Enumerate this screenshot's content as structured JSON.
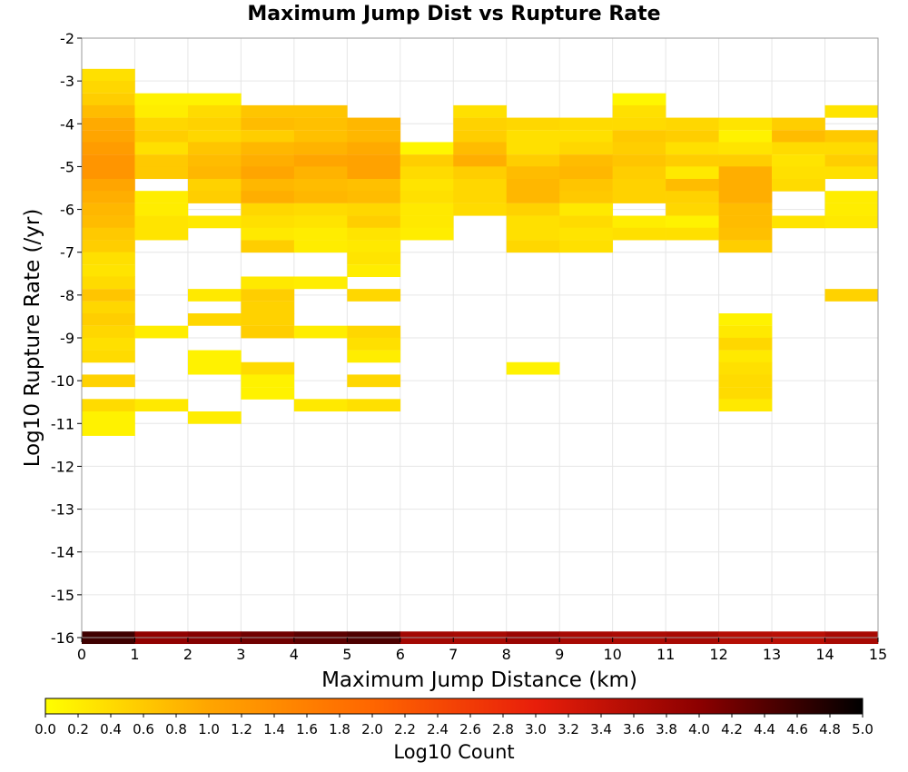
{
  "chart_data": {
    "type": "heatmap",
    "title": "Maximum Jump Dist vs Rupture Rate",
    "xlabel": "Maximum Jump Distance (km)",
    "ylabel": "Log10 Rupture Rate (/yr)",
    "xlim": [
      0,
      15
    ],
    "ylim": [
      -16,
      -2
    ],
    "x_ticks": [
      "0",
      "1",
      "2",
      "3",
      "4",
      "5",
      "6",
      "7",
      "8",
      "9",
      "10",
      "11",
      "12",
      "13",
      "14",
      "15"
    ],
    "y_ticks": [
      "-2",
      "-3",
      "-4",
      "-5",
      "-6",
      "-7",
      "-8",
      "-9",
      "-10",
      "-11",
      "-12",
      "-13",
      "-14",
      "-15",
      "-16"
    ],
    "grid": true,
    "x_bin_width": 1,
    "y_bin_height": 0.285,
    "colorbar": {
      "label": "Log10 Count",
      "min": 0.0,
      "max": 5.0,
      "ticks": [
        "0.0",
        "0.2",
        "0.4",
        "0.6",
        "0.8",
        "1.0",
        "1.2",
        "1.4",
        "1.6",
        "1.8",
        "2.0",
        "2.2",
        "2.4",
        "2.6",
        "2.8",
        "3.0",
        "3.2",
        "3.4",
        "3.6",
        "3.8",
        "4.0",
        "4.2",
        "4.4",
        "4.6",
        "4.8",
        "5.0"
      ],
      "colors": [
        "#ffff00",
        "#ffa500",
        "#ff6600",
        "#e81e0a",
        "#8c0000",
        "#000000"
      ]
    },
    "bins": [
      {
        "x": 0,
        "y": -2.86,
        "v": 0.35
      },
      {
        "x": 0,
        "y": -3.14,
        "v": 0.45
      },
      {
        "x": 0,
        "y": -3.43,
        "v": 0.55
      },
      {
        "x": 0,
        "y": -3.71,
        "v": 0.75
      },
      {
        "x": 0,
        "y": -4.0,
        "v": 0.95
      },
      {
        "x": 0,
        "y": -4.29,
        "v": 1.0
      },
      {
        "x": 0,
        "y": -4.57,
        "v": 1.15
      },
      {
        "x": 0,
        "y": -4.86,
        "v": 1.25
      },
      {
        "x": 0,
        "y": -5.14,
        "v": 1.25
      },
      {
        "x": 0,
        "y": -5.43,
        "v": 1.0
      },
      {
        "x": 0,
        "y": -5.71,
        "v": 0.9
      },
      {
        "x": 0,
        "y": -6.0,
        "v": 0.8
      },
      {
        "x": 0,
        "y": -6.29,
        "v": 0.75
      },
      {
        "x": 0,
        "y": -6.57,
        "v": 0.6
      },
      {
        "x": 0,
        "y": -6.86,
        "v": 0.55
      },
      {
        "x": 0,
        "y": -7.14,
        "v": 0.35
      },
      {
        "x": 0,
        "y": -7.43,
        "v": 0.3
      },
      {
        "x": 0,
        "y": -7.71,
        "v": 0.4
      },
      {
        "x": 0,
        "y": -8.0,
        "v": 0.65
      },
      {
        "x": 0,
        "y": -8.29,
        "v": 0.45
      },
      {
        "x": 0,
        "y": -8.57,
        "v": 0.55
      },
      {
        "x": 0,
        "y": -8.86,
        "v": 0.45
      },
      {
        "x": 0,
        "y": -9.14,
        "v": 0.35
      },
      {
        "x": 0,
        "y": -9.43,
        "v": 0.4
      },
      {
        "x": 0,
        "y": -10.0,
        "v": 0.5
      },
      {
        "x": 0,
        "y": -10.57,
        "v": 0.4
      },
      {
        "x": 0,
        "y": -10.86,
        "v": 0.15
      },
      {
        "x": 0,
        "y": -11.14,
        "v": 0.15
      },
      {
        "x": 1,
        "y": -3.43,
        "v": 0.15
      },
      {
        "x": 1,
        "y": -3.71,
        "v": 0.2
      },
      {
        "x": 1,
        "y": -4.0,
        "v": 0.45
      },
      {
        "x": 1,
        "y": -4.29,
        "v": 0.55
      },
      {
        "x": 1,
        "y": -4.57,
        "v": 0.35
      },
      {
        "x": 1,
        "y": -4.86,
        "v": 0.6
      },
      {
        "x": 1,
        "y": -5.14,
        "v": 0.6
      },
      {
        "x": 1,
        "y": -5.71,
        "v": 0.2
      },
      {
        "x": 1,
        "y": -6.0,
        "v": 0.2
      },
      {
        "x": 1,
        "y": -6.29,
        "v": 0.3
      },
      {
        "x": 1,
        "y": -6.57,
        "v": 0.3
      },
      {
        "x": 1,
        "y": -8.86,
        "v": 0.2
      },
      {
        "x": 1,
        "y": -10.57,
        "v": 0.25
      },
      {
        "x": 2,
        "y": -3.43,
        "v": 0.15
      },
      {
        "x": 2,
        "y": -3.71,
        "v": 0.4
      },
      {
        "x": 2,
        "y": -4.0,
        "v": 0.5
      },
      {
        "x": 2,
        "y": -4.29,
        "v": 0.45
      },
      {
        "x": 2,
        "y": -4.57,
        "v": 0.65
      },
      {
        "x": 2,
        "y": -4.86,
        "v": 0.75
      },
      {
        "x": 2,
        "y": -5.14,
        "v": 0.8
      },
      {
        "x": 2,
        "y": -5.43,
        "v": 0.5
      },
      {
        "x": 2,
        "y": -5.71,
        "v": 0.55
      },
      {
        "x": 2,
        "y": -6.29,
        "v": 0.25
      },
      {
        "x": 2,
        "y": -8.0,
        "v": 0.25
      },
      {
        "x": 2,
        "y": -8.57,
        "v": 0.45
      },
      {
        "x": 2,
        "y": -9.43,
        "v": 0.15
      },
      {
        "x": 2,
        "y": -9.71,
        "v": 0.15
      },
      {
        "x": 2,
        "y": -10.86,
        "v": 0.2
      },
      {
        "x": 3,
        "y": -3.71,
        "v": 0.65
      },
      {
        "x": 3,
        "y": -4.0,
        "v": 0.75
      },
      {
        "x": 3,
        "y": -4.29,
        "v": 0.55
      },
      {
        "x": 3,
        "y": -4.57,
        "v": 0.8
      },
      {
        "x": 3,
        "y": -4.86,
        "v": 0.9
      },
      {
        "x": 3,
        "y": -5.14,
        "v": 1.0
      },
      {
        "x": 3,
        "y": -5.43,
        "v": 0.8
      },
      {
        "x": 3,
        "y": -5.71,
        "v": 0.9
      },
      {
        "x": 3,
        "y": -6.0,
        "v": 0.45
      },
      {
        "x": 3,
        "y": -6.29,
        "v": 0.35
      },
      {
        "x": 3,
        "y": -6.57,
        "v": 0.25
      },
      {
        "x": 3,
        "y": -6.86,
        "v": 0.55
      },
      {
        "x": 3,
        "y": -7.71,
        "v": 0.25
      },
      {
        "x": 3,
        "y": -8.0,
        "v": 0.55
      },
      {
        "x": 3,
        "y": -8.29,
        "v": 0.5
      },
      {
        "x": 3,
        "y": -8.57,
        "v": 0.5
      },
      {
        "x": 3,
        "y": -8.86,
        "v": 0.55
      },
      {
        "x": 3,
        "y": -9.71,
        "v": 0.4
      },
      {
        "x": 3,
        "y": -10.0,
        "v": 0.15
      },
      {
        "x": 3,
        "y": -10.29,
        "v": 0.15
      },
      {
        "x": 4,
        "y": -3.71,
        "v": 0.65
      },
      {
        "x": 4,
        "y": -4.0,
        "v": 0.7
      },
      {
        "x": 4,
        "y": -4.29,
        "v": 0.7
      },
      {
        "x": 4,
        "y": -4.57,
        "v": 0.85
      },
      {
        "x": 4,
        "y": -4.86,
        "v": 1.0
      },
      {
        "x": 4,
        "y": -5.14,
        "v": 0.85
      },
      {
        "x": 4,
        "y": -5.43,
        "v": 0.75
      },
      {
        "x": 4,
        "y": -5.71,
        "v": 0.8
      },
      {
        "x": 4,
        "y": -6.0,
        "v": 0.4
      },
      {
        "x": 4,
        "y": -6.29,
        "v": 0.3
      },
      {
        "x": 4,
        "y": -6.57,
        "v": 0.2
      },
      {
        "x": 4,
        "y": -6.86,
        "v": 0.2
      },
      {
        "x": 4,
        "y": -7.71,
        "v": 0.2
      },
      {
        "x": 4,
        "y": -8.86,
        "v": 0.2
      },
      {
        "x": 4,
        "y": -10.57,
        "v": 0.25
      },
      {
        "x": 5,
        "y": -4.0,
        "v": 0.8
      },
      {
        "x": 5,
        "y": -4.29,
        "v": 0.8
      },
      {
        "x": 5,
        "y": -4.57,
        "v": 0.95
      },
      {
        "x": 5,
        "y": -4.86,
        "v": 1.05
      },
      {
        "x": 5,
        "y": -5.14,
        "v": 1.05
      },
      {
        "x": 5,
        "y": -5.43,
        "v": 0.7
      },
      {
        "x": 5,
        "y": -5.71,
        "v": 0.75
      },
      {
        "x": 5,
        "y": -6.0,
        "v": 0.45
      },
      {
        "x": 5,
        "y": -6.29,
        "v": 0.55
      },
      {
        "x": 5,
        "y": -6.57,
        "v": 0.3
      },
      {
        "x": 5,
        "y": -6.86,
        "v": 0.25
      },
      {
        "x": 5,
        "y": -7.14,
        "v": 0.3
      },
      {
        "x": 5,
        "y": -7.43,
        "v": 0.2
      },
      {
        "x": 5,
        "y": -8.0,
        "v": 0.45
      },
      {
        "x": 5,
        "y": -8.86,
        "v": 0.45
      },
      {
        "x": 5,
        "y": -9.14,
        "v": 0.35
      },
      {
        "x": 5,
        "y": -9.43,
        "v": 0.2
      },
      {
        "x": 5,
        "y": -10.0,
        "v": 0.45
      },
      {
        "x": 5,
        "y": -10.57,
        "v": 0.35
      },
      {
        "x": 6,
        "y": -4.57,
        "v": 0.1
      },
      {
        "x": 6,
        "y": -4.86,
        "v": 0.55
      },
      {
        "x": 6,
        "y": -5.14,
        "v": 0.4
      },
      {
        "x": 6,
        "y": -5.43,
        "v": 0.3
      },
      {
        "x": 6,
        "y": -5.71,
        "v": 0.35
      },
      {
        "x": 6,
        "y": -6.0,
        "v": 0.25
      },
      {
        "x": 6,
        "y": -6.29,
        "v": 0.25
      },
      {
        "x": 6,
        "y": -6.57,
        "v": 0.2
      },
      {
        "x": 7,
        "y": -3.71,
        "v": 0.35
      },
      {
        "x": 7,
        "y": -4.0,
        "v": 0.5
      },
      {
        "x": 7,
        "y": -4.29,
        "v": 0.55
      },
      {
        "x": 7,
        "y": -4.57,
        "v": 0.75
      },
      {
        "x": 7,
        "y": -4.86,
        "v": 0.9
      },
      {
        "x": 7,
        "y": -5.14,
        "v": 0.55
      },
      {
        "x": 7,
        "y": -5.43,
        "v": 0.45
      },
      {
        "x": 7,
        "y": -5.71,
        "v": 0.45
      },
      {
        "x": 7,
        "y": -6.0,
        "v": 0.4
      },
      {
        "x": 8,
        "y": -4.0,
        "v": 0.45
      },
      {
        "x": 8,
        "y": -4.29,
        "v": 0.35
      },
      {
        "x": 8,
        "y": -4.57,
        "v": 0.35
      },
      {
        "x": 8,
        "y": -4.86,
        "v": 0.55
      },
      {
        "x": 8,
        "y": -5.14,
        "v": 0.75
      },
      {
        "x": 8,
        "y": -5.43,
        "v": 0.8
      },
      {
        "x": 8,
        "y": -5.71,
        "v": 0.8
      },
      {
        "x": 8,
        "y": -6.0,
        "v": 0.5
      },
      {
        "x": 8,
        "y": -6.29,
        "v": 0.35
      },
      {
        "x": 8,
        "y": -6.57,
        "v": 0.35
      },
      {
        "x": 8,
        "y": -6.86,
        "v": 0.45
      },
      {
        "x": 8,
        "y": -9.71,
        "v": 0.15
      },
      {
        "x": 9,
        "y": -4.0,
        "v": 0.4
      },
      {
        "x": 9,
        "y": -4.29,
        "v": 0.35
      },
      {
        "x": 9,
        "y": -4.57,
        "v": 0.45
      },
      {
        "x": 9,
        "y": -4.86,
        "v": 0.75
      },
      {
        "x": 9,
        "y": -5.14,
        "v": 0.8
      },
      {
        "x": 9,
        "y": -5.43,
        "v": 0.65
      },
      {
        "x": 9,
        "y": -5.71,
        "v": 0.6
      },
      {
        "x": 9,
        "y": -6.0,
        "v": 0.25
      },
      {
        "x": 9,
        "y": -6.29,
        "v": 0.4
      },
      {
        "x": 9,
        "y": -6.57,
        "v": 0.3
      },
      {
        "x": 9,
        "y": -6.86,
        "v": 0.35
      },
      {
        "x": 10,
        "y": -3.43,
        "v": 0.1
      },
      {
        "x": 10,
        "y": -3.71,
        "v": 0.35
      },
      {
        "x": 10,
        "y": -4.0,
        "v": 0.4
      },
      {
        "x": 10,
        "y": -4.29,
        "v": 0.6
      },
      {
        "x": 10,
        "y": -4.57,
        "v": 0.55
      },
      {
        "x": 10,
        "y": -4.86,
        "v": 0.65
      },
      {
        "x": 10,
        "y": -5.14,
        "v": 0.55
      },
      {
        "x": 10,
        "y": -5.43,
        "v": 0.5
      },
      {
        "x": 10,
        "y": -5.71,
        "v": 0.5
      },
      {
        "x": 10,
        "y": -6.29,
        "v": 0.2
      },
      {
        "x": 10,
        "y": -6.57,
        "v": 0.35
      },
      {
        "x": 11,
        "y": -4.0,
        "v": 0.45
      },
      {
        "x": 11,
        "y": -4.29,
        "v": 0.55
      },
      {
        "x": 11,
        "y": -4.57,
        "v": 0.35
      },
      {
        "x": 11,
        "y": -4.86,
        "v": 0.55
      },
      {
        "x": 11,
        "y": -5.14,
        "v": 0.25
      },
      {
        "x": 11,
        "y": -5.43,
        "v": 0.75
      },
      {
        "x": 11,
        "y": -5.71,
        "v": 0.5
      },
      {
        "x": 11,
        "y": -6.0,
        "v": 0.45
      },
      {
        "x": 11,
        "y": -6.29,
        "v": 0.15
      },
      {
        "x": 11,
        "y": -6.57,
        "v": 0.35
      },
      {
        "x": 12,
        "y": -4.0,
        "v": 0.3
      },
      {
        "x": 12,
        "y": -4.29,
        "v": 0.15
      },
      {
        "x": 12,
        "y": -4.57,
        "v": 0.3
      },
      {
        "x": 12,
        "y": -4.86,
        "v": 0.55
      },
      {
        "x": 12,
        "y": -5.14,
        "v": 0.9
      },
      {
        "x": 12,
        "y": -5.43,
        "v": 0.9
      },
      {
        "x": 12,
        "y": -5.71,
        "v": 0.9
      },
      {
        "x": 12,
        "y": -6.0,
        "v": 0.75
      },
      {
        "x": 12,
        "y": -6.29,
        "v": 0.75
      },
      {
        "x": 12,
        "y": -6.57,
        "v": 0.7
      },
      {
        "x": 12,
        "y": -6.86,
        "v": 0.55
      },
      {
        "x": 12,
        "y": -8.57,
        "v": 0.15
      },
      {
        "x": 12,
        "y": -8.86,
        "v": 0.25
      },
      {
        "x": 12,
        "y": -9.14,
        "v": 0.45
      },
      {
        "x": 12,
        "y": -9.43,
        "v": 0.25
      },
      {
        "x": 12,
        "y": -9.71,
        "v": 0.35
      },
      {
        "x": 12,
        "y": -10.0,
        "v": 0.4
      },
      {
        "x": 12,
        "y": -10.29,
        "v": 0.4
      },
      {
        "x": 12,
        "y": -10.57,
        "v": 0.25
      },
      {
        "x": 13,
        "y": -4.0,
        "v": 0.55
      },
      {
        "x": 13,
        "y": -4.29,
        "v": 0.75
      },
      {
        "x": 13,
        "y": -4.57,
        "v": 0.4
      },
      {
        "x": 13,
        "y": -4.86,
        "v": 0.3
      },
      {
        "x": 13,
        "y": -5.14,
        "v": 0.35
      },
      {
        "x": 13,
        "y": -5.43,
        "v": 0.4
      },
      {
        "x": 13,
        "y": -6.29,
        "v": 0.3
      },
      {
        "x": 14,
        "y": -3.71,
        "v": 0.3
      },
      {
        "x": 14,
        "y": -4.29,
        "v": 0.6
      },
      {
        "x": 14,
        "y": -4.57,
        "v": 0.4
      },
      {
        "x": 14,
        "y": -4.86,
        "v": 0.55
      },
      {
        "x": 14,
        "y": -5.14,
        "v": 0.35
      },
      {
        "x": 14,
        "y": -5.71,
        "v": 0.2
      },
      {
        "x": 14,
        "y": -6.0,
        "v": 0.2
      },
      {
        "x": 14,
        "y": -6.29,
        "v": 0.25
      },
      {
        "x": 14,
        "y": -8.0,
        "v": 0.5
      },
      {
        "x": 0,
        "y": -16.0,
        "v": 4.55
      },
      {
        "x": 1,
        "y": -16.0,
        "v": 3.95
      },
      {
        "x": 2,
        "y": -16.0,
        "v": 4.05
      },
      {
        "x": 3,
        "y": -16.0,
        "v": 4.2
      },
      {
        "x": 4,
        "y": -16.0,
        "v": 4.35
      },
      {
        "x": 5,
        "y": -16.0,
        "v": 4.45
      },
      {
        "x": 6,
        "y": -16.0,
        "v": 3.75
      },
      {
        "x": 7,
        "y": -16.0,
        "v": 3.7
      },
      {
        "x": 8,
        "y": -16.0,
        "v": 3.85
      },
      {
        "x": 9,
        "y": -16.0,
        "v": 3.7
      },
      {
        "x": 10,
        "y": -16.0,
        "v": 3.65
      },
      {
        "x": 11,
        "y": -16.0,
        "v": 3.7
      },
      {
        "x": 12,
        "y": -16.0,
        "v": 3.55
      },
      {
        "x": 13,
        "y": -16.0,
        "v": 3.5
      },
      {
        "x": 14,
        "y": -16.0,
        "v": 3.7
      }
    ]
  }
}
